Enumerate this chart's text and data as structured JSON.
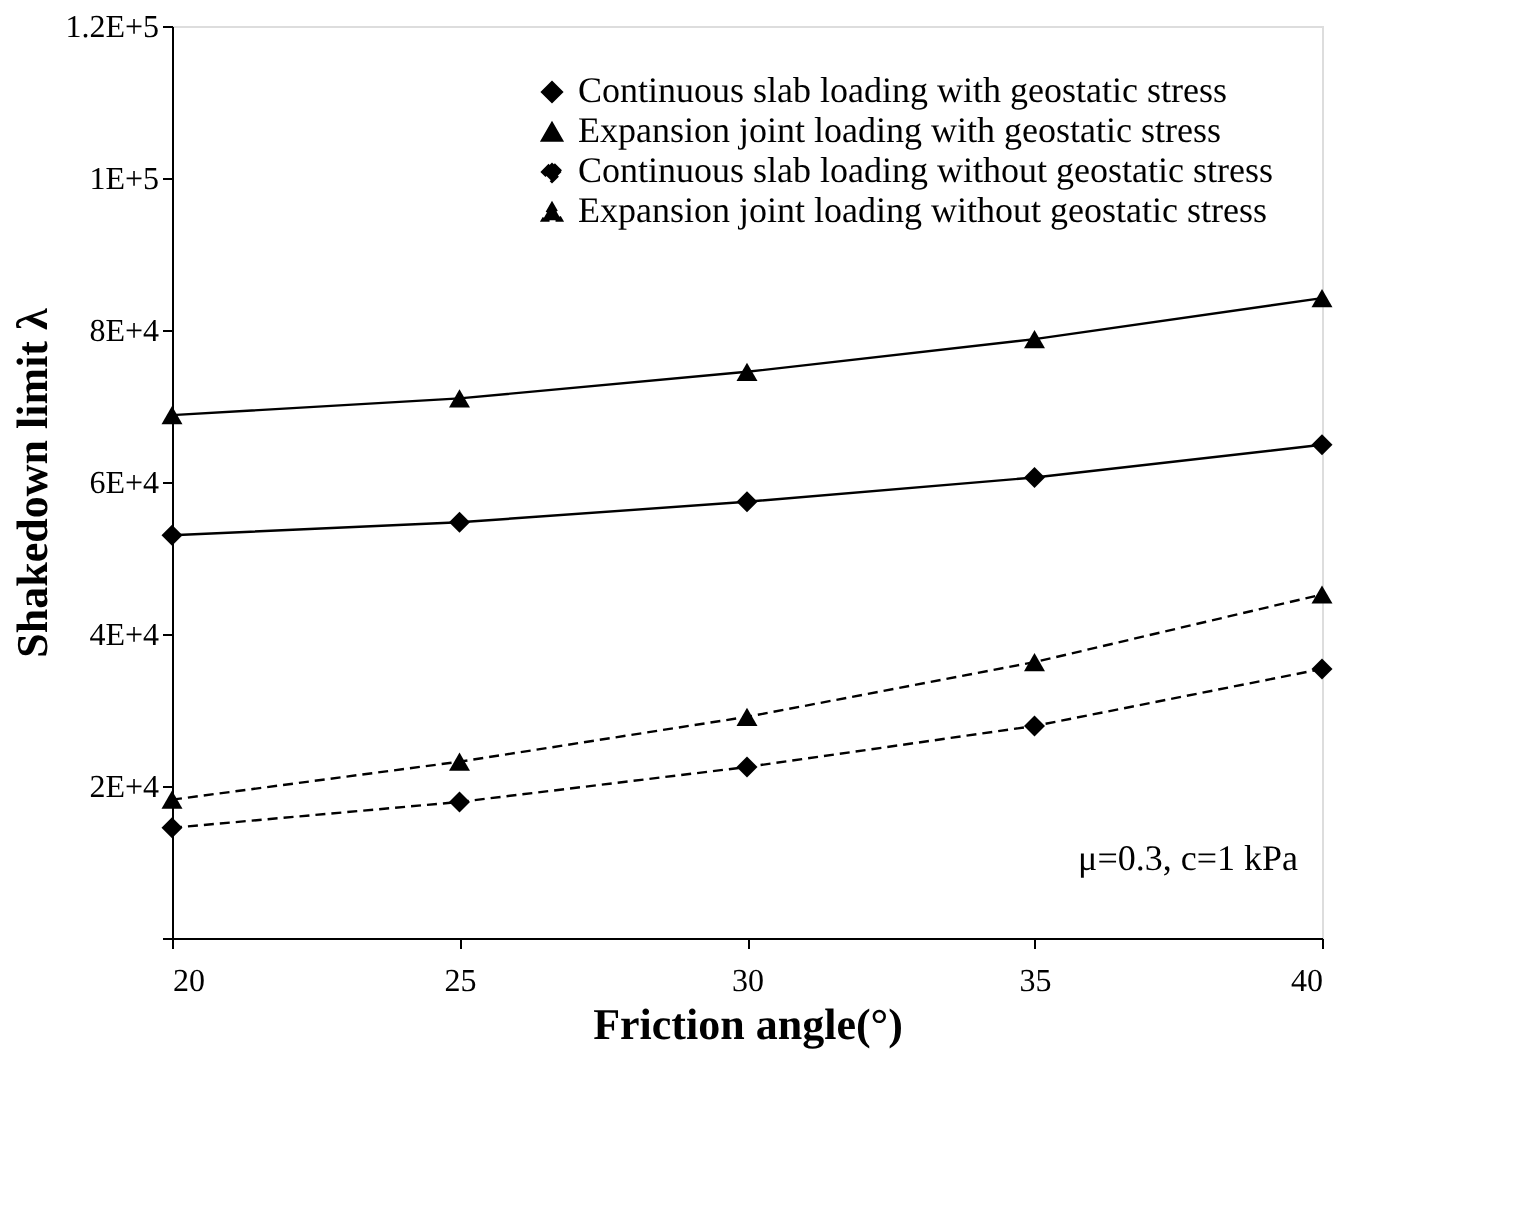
{
  "chart_data": {
    "type": "line",
    "xlabel": "Friction angle(°)",
    "ylabel": "Shakedown limit λ",
    "x": [
      20,
      25,
      30,
      35,
      40
    ],
    "series": [
      {
        "name": "Continuous slab loading with geostatic stress",
        "color": "#000000",
        "marker": "diamond",
        "line_style": "solid",
        "values": [
          53000,
          54700,
          57400,
          60600,
          64900
        ]
      },
      {
        "name": "Expansion joint loading with geostatic stress",
        "color": "#000000",
        "marker": "triangle",
        "line_style": "solid",
        "values": [
          68800,
          71000,
          74500,
          78800,
          84200
        ]
      },
      {
        "name": "Continuous slab loading without geostatic stress",
        "color": "#000000",
        "marker": "diamond",
        "line_style": "dashed",
        "values": [
          14500,
          17900,
          22500,
          27900,
          35400
        ]
      },
      {
        "name": "Expansion joint loading without geostatic stress",
        "color": "#000000",
        "marker": "triangle",
        "line_style": "dashed",
        "values": [
          18200,
          23200,
          29100,
          36300,
          45200
        ]
      }
    ],
    "xlim": [
      20,
      40
    ],
    "xticks": [
      20,
      25,
      30,
      35,
      40
    ],
    "ylim": [
      0,
      120000
    ],
    "yticks": [
      {
        "value": 0,
        "label": null
      },
      {
        "value": 20000,
        "label": "2E+4"
      },
      {
        "value": 40000,
        "label": "4E+4"
      },
      {
        "value": 60000,
        "label": "6E+4"
      },
      {
        "value": 80000,
        "label": "8E+4"
      },
      {
        "value": 100000,
        "label": "1E+5"
      },
      {
        "value": 120000,
        "label": "1.2E+5"
      }
    ],
    "annotations": [
      "μ=0.3, c=1 kPa"
    ],
    "grid": false,
    "legend": "top right"
  }
}
